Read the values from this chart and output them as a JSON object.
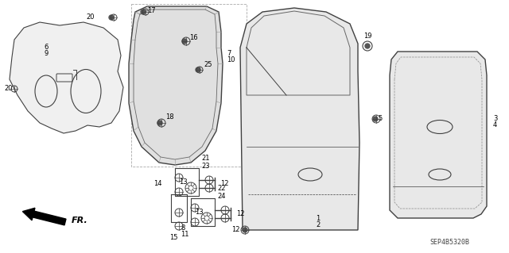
{
  "background_color": "#ffffff",
  "line_color": "#404040",
  "fig_width": 6.4,
  "fig_height": 3.19,
  "dpi": 100,
  "part_code": "SEP4B5320B",
  "direction_label": "FR."
}
